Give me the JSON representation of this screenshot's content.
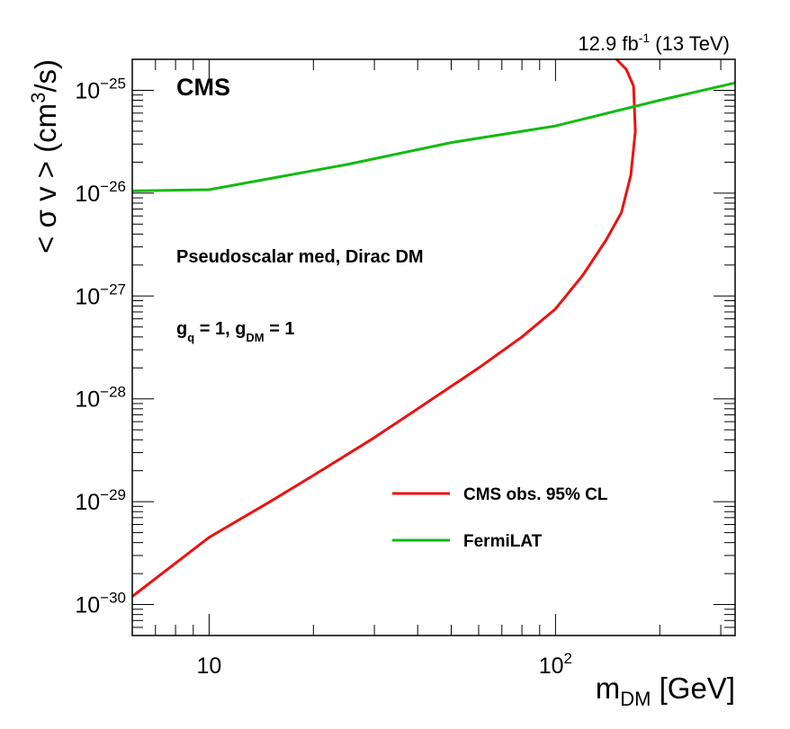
{
  "chart_data": {
    "type": "line",
    "experiment": "CMS",
    "lumi_label": "12.9 fb",
    "lumi_exp": "-1",
    "energy_label": " (13 TeV)",
    "annotation_model": "Pseudoscalar med, Dirac DM",
    "coupling": {
      "g1": "g",
      "g1_sub": "q",
      "mid": " = 1, g",
      "g2_sub": "DM",
      "end": " = 1"
    },
    "xlabel": {
      "main": "m",
      "sub": "DM",
      "unit": " [GeV]"
    },
    "ylabel": {
      "pre": "< σ v > (cm",
      "sup": "3",
      "post": "/s)"
    },
    "x_scale": "log",
    "y_scale": "log",
    "xlim": [
      6,
      330
    ],
    "ylim": [
      5e-31,
      2e-25
    ],
    "x_ticks": [
      {
        "value": 10,
        "base": "10",
        "exp": ""
      },
      {
        "value": 100,
        "base": "10",
        "exp": "2"
      }
    ],
    "y_ticks": [
      {
        "value": 1e-30,
        "base": "10",
        "exp": "−30"
      },
      {
        "value": 1e-29,
        "base": "10",
        "exp": "−29"
      },
      {
        "value": 1e-28,
        "base": "10",
        "exp": "−28"
      },
      {
        "value": 1e-27,
        "base": "10",
        "exp": "−27"
      },
      {
        "value": 1e-26,
        "base": "10",
        "exp": "−26"
      },
      {
        "value": 1e-25,
        "base": "10",
        "exp": "−25"
      }
    ],
    "legend_position": "bottom-right",
    "series": [
      {
        "name": "CMS obs. 95% CL",
        "color": "#ee1111",
        "x": [
          6,
          10,
          15,
          20,
          30,
          40,
          60,
          80,
          100,
          120,
          140,
          155,
          165,
          170,
          168,
          160,
          150
        ],
        "y": [
          1.2e-30,
          4.5e-30,
          1e-29,
          1.8e-29,
          4.2e-29,
          8e-29,
          2e-28,
          4e-28,
          7.5e-28,
          1.6e-27,
          3.5e-27,
          6.5e-27,
          1.5e-26,
          4e-26,
          1.1e-25,
          1.6e-25,
          2e-25
        ]
      },
      {
        "name": "FermiLAT",
        "color": "#11bb11",
        "x": [
          6,
          10,
          25,
          50,
          100,
          200,
          330
        ],
        "y": [
          1.05e-26,
          1.08e-26,
          1.9e-26,
          3.1e-26,
          4.5e-26,
          8e-26,
          1.18e-25
        ]
      }
    ]
  }
}
